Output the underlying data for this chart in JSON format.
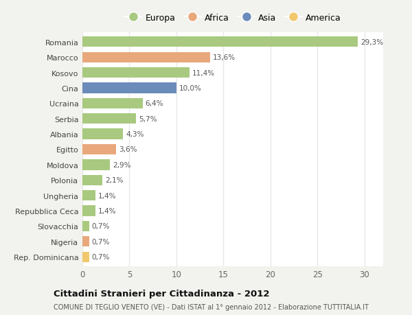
{
  "countries": [
    "Romania",
    "Marocco",
    "Kosovo",
    "Cina",
    "Ucraina",
    "Serbia",
    "Albania",
    "Egitto",
    "Moldova",
    "Polonia",
    "Ungheria",
    "Repubblica Ceca",
    "Slovacchia",
    "Nigeria",
    "Rep. Dominicana"
  ],
  "values": [
    29.3,
    13.6,
    11.4,
    10.0,
    6.4,
    5.7,
    4.3,
    3.6,
    2.9,
    2.1,
    1.4,
    1.4,
    0.7,
    0.7,
    0.7
  ],
  "labels": [
    "29,3%",
    "13,6%",
    "11,4%",
    "10,0%",
    "6,4%",
    "5,7%",
    "4,3%",
    "3,6%",
    "2,9%",
    "2,1%",
    "1,4%",
    "1,4%",
    "0,7%",
    "0,7%",
    "0,7%"
  ],
  "continents": [
    "Europa",
    "Africa",
    "Europa",
    "Asia",
    "Europa",
    "Europa",
    "Europa",
    "Africa",
    "Europa",
    "Europa",
    "Europa",
    "Europa",
    "Europa",
    "Africa",
    "America"
  ],
  "colors": {
    "Europa": "#a8c97f",
    "Africa": "#e8a87c",
    "Asia": "#6b8cba",
    "America": "#f0c96e"
  },
  "legend_order": [
    "Europa",
    "Africa",
    "Asia",
    "America"
  ],
  "title1": "Cittadini Stranieri per Cittadinanza - 2012",
  "title2": "COMUNE DI TEGLIO VENETO (VE) - Dati ISTAT al 1° gennaio 2012 - Elaborazione TUTTITALIA.IT",
  "xlim": [
    0,
    32
  ],
  "xticks": [
    0,
    5,
    10,
    15,
    20,
    25,
    30
  ],
  "background_color": "#f2f2ee",
  "plot_background": "#ffffff",
  "grid_color": "#e8e8e8",
  "bar_height": 0.68,
  "label_fontsize": 7.5,
  "ytick_fontsize": 8.0,
  "xtick_fontsize": 8.5
}
